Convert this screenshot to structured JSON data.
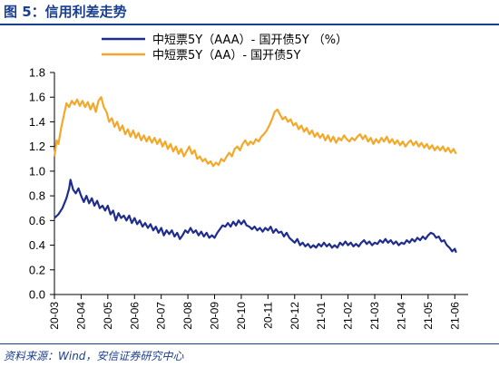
{
  "figure": {
    "title": "图 5：信用利差走势",
    "source": "资料来源：Wind，安信证券研究中心"
  },
  "colors": {
    "accent": "#1a3f8f",
    "series_aaa": "#1f2d8c",
    "series_aa": "#f4a82a"
  },
  "chart_data": {
    "type": "line",
    "title": "",
    "xlabel": "",
    "ylabel": "",
    "ylim": [
      0,
      1.8
    ],
    "yticks": [
      "0.0",
      "0.2",
      "0.4",
      "0.6",
      "0.8",
      "1.0",
      "1.2",
      "1.4",
      "1.6",
      "1.8"
    ],
    "x": [
      "20-03",
      "20-04",
      "20-05",
      "20-06",
      "20-07",
      "20-08",
      "20-09",
      "20-10",
      "20-11",
      "20-12",
      "21-01",
      "21-02",
      "21-03",
      "21-04",
      "21-05",
      "21-06"
    ],
    "grid": false,
    "legend_placement": "top-center",
    "series": [
      {
        "name": "中短票5Y（AAA）- 国开债5Y （%）",
        "values": [
          [
            0.0,
            0.62
          ],
          [
            0.15,
            0.65
          ],
          [
            0.3,
            0.7
          ],
          [
            0.45,
            0.78
          ],
          [
            0.55,
            0.86
          ],
          [
            0.6,
            0.93
          ],
          [
            0.7,
            0.85
          ],
          [
            0.8,
            0.82
          ],
          [
            0.9,
            0.86
          ],
          [
            1.0,
            0.8
          ],
          [
            1.1,
            0.75
          ],
          [
            1.2,
            0.8
          ],
          [
            1.3,
            0.74
          ],
          [
            1.4,
            0.78
          ],
          [
            1.5,
            0.72
          ],
          [
            1.6,
            0.76
          ],
          [
            1.7,
            0.7
          ],
          [
            1.8,
            0.72
          ],
          [
            1.9,
            0.68
          ],
          [
            2.0,
            0.72
          ],
          [
            2.1,
            0.65
          ],
          [
            2.2,
            0.68
          ],
          [
            2.3,
            0.6
          ],
          [
            2.4,
            0.66
          ],
          [
            2.5,
            0.62
          ],
          [
            2.6,
            0.64
          ],
          [
            2.7,
            0.6
          ],
          [
            2.8,
            0.64
          ],
          [
            2.9,
            0.58
          ],
          [
            3.0,
            0.62
          ],
          [
            3.1,
            0.57
          ],
          [
            3.2,
            0.6
          ],
          [
            3.3,
            0.55
          ],
          [
            3.4,
            0.58
          ],
          [
            3.5,
            0.54
          ],
          [
            3.6,
            0.57
          ],
          [
            3.7,
            0.52
          ],
          [
            3.8,
            0.55
          ],
          [
            3.9,
            0.5
          ],
          [
            4.0,
            0.54
          ],
          [
            4.1,
            0.48
          ],
          [
            4.2,
            0.52
          ],
          [
            4.3,
            0.49
          ],
          [
            4.4,
            0.52
          ],
          [
            4.5,
            0.47
          ],
          [
            4.6,
            0.5
          ],
          [
            4.7,
            0.45
          ],
          [
            4.8,
            0.48
          ],
          [
            4.9,
            0.52
          ],
          [
            5.0,
            0.5
          ],
          [
            5.1,
            0.54
          ],
          [
            5.2,
            0.5
          ],
          [
            5.3,
            0.52
          ],
          [
            5.4,
            0.48
          ],
          [
            5.5,
            0.51
          ],
          [
            5.6,
            0.47
          ],
          [
            5.7,
            0.5
          ],
          [
            5.8,
            0.46
          ],
          [
            5.9,
            0.48
          ],
          [
            6.0,
            0.46
          ],
          [
            6.1,
            0.5
          ],
          [
            6.2,
            0.53
          ],
          [
            6.3,
            0.56
          ],
          [
            6.4,
            0.55
          ],
          [
            6.5,
            0.58
          ],
          [
            6.6,
            0.55
          ],
          [
            6.7,
            0.59
          ],
          [
            6.8,
            0.56
          ],
          [
            6.9,
            0.6
          ],
          [
            7.0,
            0.57
          ],
          [
            7.1,
            0.6
          ],
          [
            7.2,
            0.56
          ],
          [
            7.3,
            0.55
          ],
          [
            7.4,
            0.53
          ],
          [
            7.5,
            0.55
          ],
          [
            7.6,
            0.52
          ],
          [
            7.7,
            0.54
          ],
          [
            7.8,
            0.51
          ],
          [
            7.9,
            0.54
          ],
          [
            8.0,
            0.52
          ],
          [
            8.1,
            0.55
          ],
          [
            8.2,
            0.5
          ],
          [
            8.3,
            0.53
          ],
          [
            8.4,
            0.5
          ],
          [
            8.5,
            0.51
          ],
          [
            8.6,
            0.47
          ],
          [
            8.7,
            0.5
          ],
          [
            8.8,
            0.46
          ],
          [
            8.9,
            0.44
          ],
          [
            9.0,
            0.42
          ],
          [
            9.1,
            0.45
          ],
          [
            9.2,
            0.4
          ],
          [
            9.3,
            0.42
          ],
          [
            9.4,
            0.39
          ],
          [
            9.5,
            0.41
          ],
          [
            9.6,
            0.38
          ],
          [
            9.7,
            0.4
          ],
          [
            9.8,
            0.38
          ],
          [
            9.9,
            0.41
          ],
          [
            10.0,
            0.39
          ],
          [
            10.1,
            0.42
          ],
          [
            10.2,
            0.39
          ],
          [
            10.3,
            0.41
          ],
          [
            10.4,
            0.38
          ],
          [
            10.5,
            0.4
          ],
          [
            10.6,
            0.38
          ],
          [
            10.7,
            0.42
          ],
          [
            10.8,
            0.4
          ],
          [
            10.9,
            0.43
          ],
          [
            11.0,
            0.4
          ],
          [
            11.1,
            0.42
          ],
          [
            11.2,
            0.39
          ],
          [
            11.3,
            0.41
          ],
          [
            11.4,
            0.39
          ],
          [
            11.5,
            0.42
          ],
          [
            11.6,
            0.44
          ],
          [
            11.7,
            0.41
          ],
          [
            11.8,
            0.43
          ],
          [
            11.9,
            0.4
          ],
          [
            12.0,
            0.42
          ],
          [
            12.1,
            0.41
          ],
          [
            12.2,
            0.44
          ],
          [
            12.3,
            0.42
          ],
          [
            12.4,
            0.45
          ],
          [
            12.5,
            0.42
          ],
          [
            12.6,
            0.44
          ],
          [
            12.7,
            0.41
          ],
          [
            12.8,
            0.43
          ],
          [
            12.9,
            0.4
          ],
          [
            13.0,
            0.42
          ],
          [
            13.1,
            0.41
          ],
          [
            13.2,
            0.44
          ],
          [
            13.3,
            0.42
          ],
          [
            13.4,
            0.45
          ],
          [
            13.5,
            0.43
          ],
          [
            13.6,
            0.46
          ],
          [
            13.7,
            0.44
          ],
          [
            13.8,
            0.47
          ],
          [
            13.9,
            0.45
          ],
          [
            14.0,
            0.48
          ],
          [
            14.1,
            0.5
          ],
          [
            14.2,
            0.49
          ],
          [
            14.3,
            0.46
          ],
          [
            14.4,
            0.47
          ],
          [
            14.5,
            0.43
          ],
          [
            14.6,
            0.44
          ],
          [
            14.7,
            0.4
          ],
          [
            14.8,
            0.38
          ],
          [
            14.9,
            0.35
          ],
          [
            15.0,
            0.37
          ],
          [
            15.05,
            0.34
          ]
        ]
      },
      {
        "name": "中短票5Y（AA）- 国开债5Y",
        "values": [
          [
            0.0,
            1.12
          ],
          [
            0.08,
            1.25
          ],
          [
            0.15,
            1.22
          ],
          [
            0.25,
            1.35
          ],
          [
            0.35,
            1.45
          ],
          [
            0.45,
            1.55
          ],
          [
            0.55,
            1.52
          ],
          [
            0.65,
            1.57
          ],
          [
            0.75,
            1.54
          ],
          [
            0.85,
            1.58
          ],
          [
            0.95,
            1.53
          ],
          [
            1.05,
            1.57
          ],
          [
            1.15,
            1.52
          ],
          [
            1.25,
            1.56
          ],
          [
            1.35,
            1.5
          ],
          [
            1.45,
            1.55
          ],
          [
            1.55,
            1.48
          ],
          [
            1.65,
            1.57
          ],
          [
            1.75,
            1.6
          ],
          [
            1.85,
            1.52
          ],
          [
            1.95,
            1.48
          ],
          [
            2.05,
            1.4
          ],
          [
            2.15,
            1.43
          ],
          [
            2.25,
            1.36
          ],
          [
            2.35,
            1.4
          ],
          [
            2.45,
            1.33
          ],
          [
            2.55,
            1.37
          ],
          [
            2.65,
            1.3
          ],
          [
            2.75,
            1.34
          ],
          [
            2.85,
            1.28
          ],
          [
            2.95,
            1.33
          ],
          [
            3.05,
            1.27
          ],
          [
            3.15,
            1.31
          ],
          [
            3.25,
            1.25
          ],
          [
            3.35,
            1.29
          ],
          [
            3.45,
            1.24
          ],
          [
            3.55,
            1.28
          ],
          [
            3.65,
            1.23
          ],
          [
            3.75,
            1.27
          ],
          [
            3.85,
            1.22
          ],
          [
            3.95,
            1.26
          ],
          [
            4.05,
            1.2
          ],
          [
            4.15,
            1.24
          ],
          [
            4.25,
            1.18
          ],
          [
            4.35,
            1.22
          ],
          [
            4.45,
            1.16
          ],
          [
            4.55,
            1.2
          ],
          [
            4.65,
            1.14
          ],
          [
            4.75,
            1.18
          ],
          [
            4.85,
            1.12
          ],
          [
            4.95,
            1.16
          ],
          [
            5.05,
            1.2
          ],
          [
            5.15,
            1.14
          ],
          [
            5.25,
            1.17
          ],
          [
            5.35,
            1.1
          ],
          [
            5.45,
            1.12
          ],
          [
            5.55,
            1.08
          ],
          [
            5.65,
            1.1
          ],
          [
            5.75,
            1.06
          ],
          [
            5.85,
            1.08
          ],
          [
            5.95,
            1.04
          ],
          [
            6.05,
            1.07
          ],
          [
            6.15,
            1.05
          ],
          [
            6.25,
            1.1
          ],
          [
            6.35,
            1.08
          ],
          [
            6.45,
            1.12
          ],
          [
            6.55,
            1.15
          ],
          [
            6.65,
            1.12
          ],
          [
            6.75,
            1.18
          ],
          [
            6.85,
            1.2
          ],
          [
            6.95,
            1.17
          ],
          [
            7.05,
            1.22
          ],
          [
            7.15,
            1.25
          ],
          [
            7.25,
            1.21
          ],
          [
            7.35,
            1.24
          ],
          [
            7.45,
            1.22
          ],
          [
            7.55,
            1.26
          ],
          [
            7.65,
            1.24
          ],
          [
            7.75,
            1.28
          ],
          [
            7.85,
            1.3
          ],
          [
            7.95,
            1.33
          ],
          [
            8.05,
            1.37
          ],
          [
            8.15,
            1.42
          ],
          [
            8.25,
            1.48
          ],
          [
            8.35,
            1.5
          ],
          [
            8.45,
            1.46
          ],
          [
            8.55,
            1.42
          ],
          [
            8.65,
            1.44
          ],
          [
            8.75,
            1.4
          ],
          [
            8.85,
            1.42
          ],
          [
            8.95,
            1.37
          ],
          [
            9.05,
            1.39
          ],
          [
            9.15,
            1.34
          ],
          [
            9.25,
            1.37
          ],
          [
            9.35,
            1.32
          ],
          [
            9.45,
            1.35
          ],
          [
            9.55,
            1.3
          ],
          [
            9.65,
            1.33
          ],
          [
            9.75,
            1.28
          ],
          [
            9.85,
            1.31
          ],
          [
            9.95,
            1.27
          ],
          [
            10.05,
            1.3
          ],
          [
            10.15,
            1.25
          ],
          [
            10.25,
            1.29
          ],
          [
            10.35,
            1.24
          ],
          [
            10.45,
            1.28
          ],
          [
            10.55,
            1.23
          ],
          [
            10.65,
            1.27
          ],
          [
            10.75,
            1.25
          ],
          [
            10.85,
            1.29
          ],
          [
            10.95,
            1.26
          ],
          [
            11.05,
            1.24
          ],
          [
            11.15,
            1.27
          ],
          [
            11.25,
            1.25
          ],
          [
            11.35,
            1.28
          ],
          [
            11.45,
            1.3
          ],
          [
            11.55,
            1.26
          ],
          [
            11.65,
            1.29
          ],
          [
            11.75,
            1.24
          ],
          [
            11.85,
            1.27
          ],
          [
            11.95,
            1.22
          ],
          [
            12.05,
            1.26
          ],
          [
            12.15,
            1.23
          ],
          [
            12.25,
            1.27
          ],
          [
            12.35,
            1.24
          ],
          [
            12.45,
            1.28
          ],
          [
            12.55,
            1.23
          ],
          [
            12.65,
            1.26
          ],
          [
            12.75,
            1.22
          ],
          [
            12.85,
            1.25
          ],
          [
            12.95,
            1.21
          ],
          [
            13.05,
            1.24
          ],
          [
            13.15,
            1.2
          ],
          [
            13.25,
            1.23
          ],
          [
            13.35,
            1.25
          ],
          [
            13.45,
            1.21
          ],
          [
            13.55,
            1.24
          ],
          [
            13.65,
            1.2
          ],
          [
            13.75,
            1.23
          ],
          [
            13.85,
            1.19
          ],
          [
            13.95,
            1.22
          ],
          [
            14.05,
            1.18
          ],
          [
            14.15,
            1.21
          ],
          [
            14.25,
            1.17
          ],
          [
            14.35,
            1.2
          ],
          [
            14.45,
            1.17
          ],
          [
            14.55,
            1.2
          ],
          [
            14.65,
            1.16
          ],
          [
            14.75,
            1.19
          ],
          [
            14.85,
            1.15
          ],
          [
            14.95,
            1.18
          ],
          [
            15.05,
            1.14
          ]
        ]
      }
    ]
  }
}
